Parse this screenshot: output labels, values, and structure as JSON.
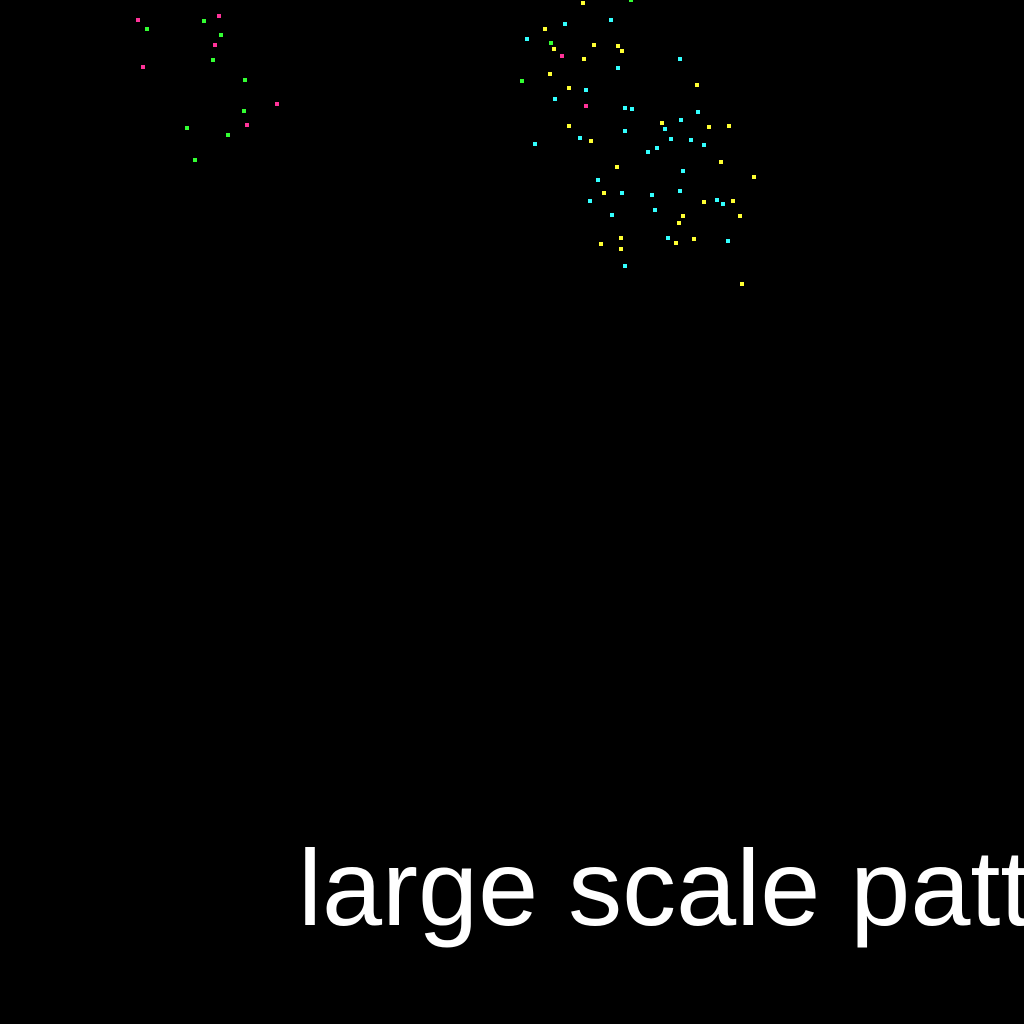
{
  "caption": "large scale patt",
  "palette": {
    "background": "#000000",
    "text": "#ffffff",
    "yellow": "#ffff33",
    "cyan": "#33ffff",
    "green": "#33ff33",
    "magenta": "#ff3399"
  }
}
